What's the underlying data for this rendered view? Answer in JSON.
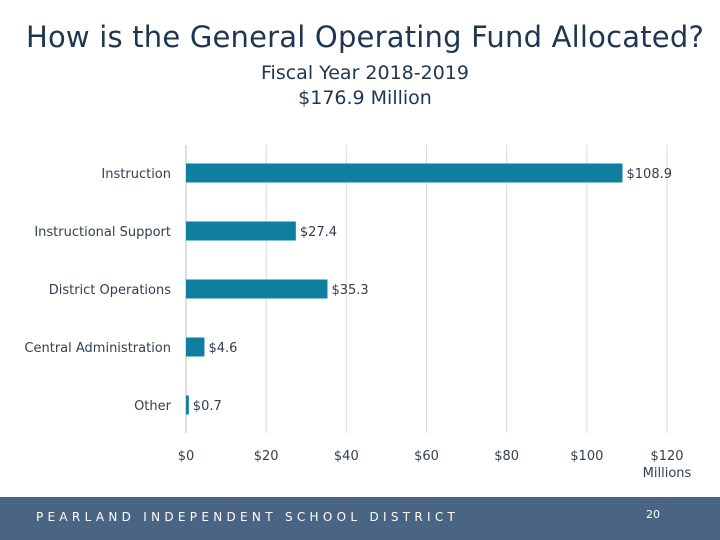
{
  "slide": {
    "title": "How is the General Operating Fund Allocated?",
    "subtitle_1": "Fiscal Year 2018-2019",
    "subtitle_2": "$176.9 Million"
  },
  "footer": {
    "text": "PEARLAND INDEPENDENT SCHOOL DISTRICT",
    "page_number": "20"
  },
  "chart_data": {
    "type": "bar",
    "orientation": "horizontal",
    "categories": [
      "Instruction",
      "Instructional Support",
      "District Operations",
      "Central Administration",
      "Other"
    ],
    "values": [
      108.9,
      27.4,
      35.3,
      4.6,
      0.7
    ],
    "value_labels": [
      "$108.9",
      "$27.4",
      "$35.3",
      "$4.6",
      "$0.7"
    ],
    "xlim": [
      0,
      120
    ],
    "x_ticks": [
      0,
      20,
      40,
      60,
      80,
      100,
      120
    ],
    "x_tick_labels": [
      "$0",
      "$20",
      "$40",
      "$60",
      "$80",
      "$100",
      "$120"
    ],
    "x_unit_label": "Millions",
    "grid": true,
    "bar_color": "#0f7f9f",
    "grid_color": "#d9d9d9"
  }
}
